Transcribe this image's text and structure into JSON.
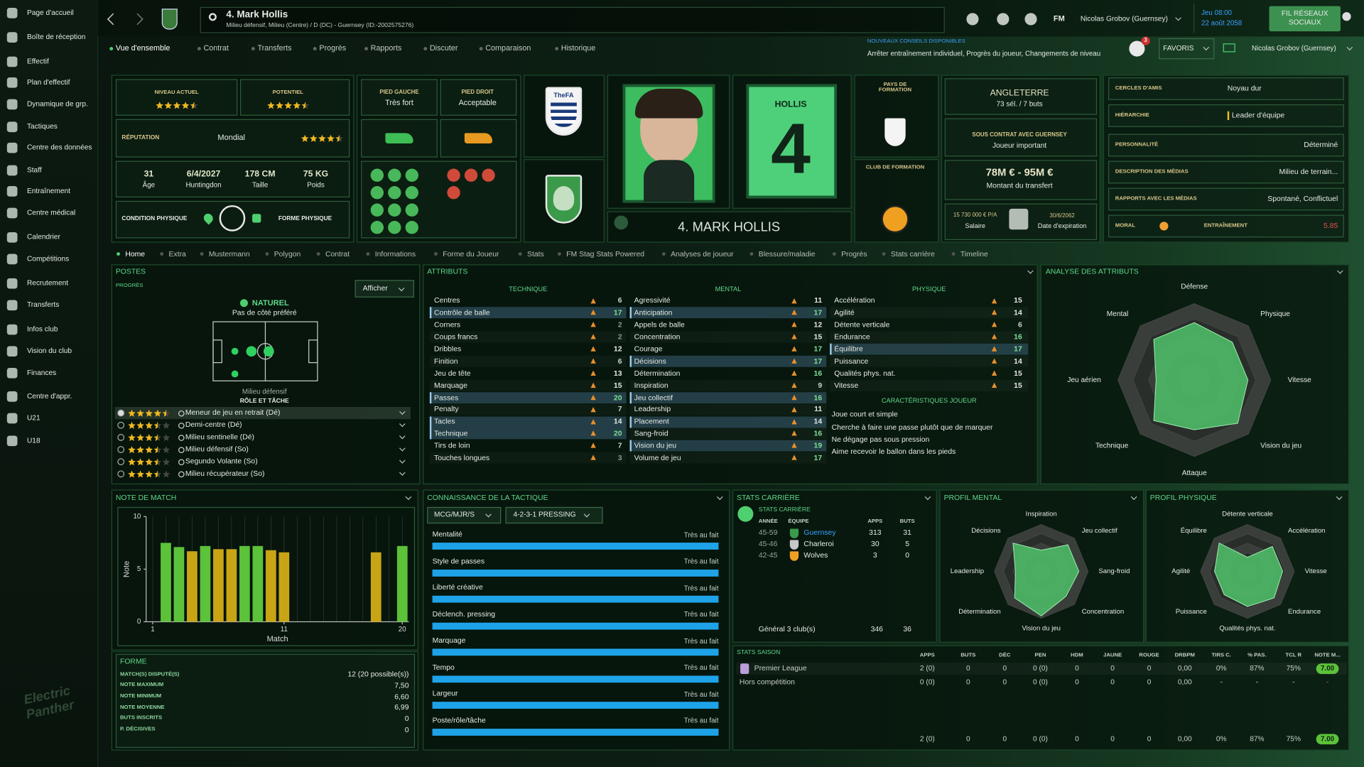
{
  "sidebar": [
    "Page d'accueil",
    "Boîte de réception",
    "Effectif",
    "Plan d'effectif",
    "Dynamique de grp.",
    "Tactiques",
    "Centre des données",
    "Staff",
    "Entraînement",
    "Centre médical",
    "Calendrier",
    "Compétitions",
    "Recrutement",
    "Transferts",
    "Infos club",
    "Vision du club",
    "Finances",
    "Centre d'appr.",
    "U21",
    "U18"
  ],
  "header": {
    "player": "4. Mark Hollis",
    "subtitle": "Milieu défensif, Milieu (Centre) / D (DC) - Guernsey (ID:-2002575276)",
    "fm": "FM",
    "manager": "Nicolas Grobov (Guernsey)",
    "day": "Jeu 08:00",
    "date": "22 août 2058",
    "social": "FIL RÉSEAUX SOCIAUX",
    "advice_title": "NOUVEAUX CONSEILS DISPONIBLES",
    "advice": "Arrêter entraînement individuel, Progrès du joueur, Changements de niveau",
    "notifications": "3",
    "favorites": "FAVORIS",
    "manager_short": "Nicolas Grobov (Guernsey)"
  },
  "nav": [
    "Vue d'ensemble",
    "Contrat",
    "Transferts",
    "Progrès",
    "Rapports",
    "Discuter",
    "Comparaison",
    "Historique"
  ],
  "profile": {
    "current_label": "NIVEAU ACTUEL",
    "current_stars": 4.5,
    "potential_label": "POTENTIEL",
    "potential_stars": 4.5,
    "reputation_label": "RÉPUTATION",
    "reputation": "Mondial",
    "reputation_stars": 4.5,
    "bio": [
      {
        "value": "31",
        "label": "Âge"
      },
      {
        "value": "6/4/2027",
        "label": "Huntingdon"
      },
      {
        "value": "178 CM",
        "label": "Taille"
      },
      {
        "value": "75 KG",
        "label": "Poids"
      }
    ],
    "condition_label": "CONDITION PHYSIQUE",
    "form_label": "FORME PHYSIQUE"
  },
  "feet": {
    "left_label": "PIED GAUCHE",
    "left": "Très fort",
    "right_label": "PIED DROIT",
    "right": "Acceptable"
  },
  "nation_badge": "TheFA",
  "name_bar": "4. MARK HOLLIS",
  "shirt": {
    "name": "HOLLIS",
    "number": "4"
  },
  "formation": {
    "country_label": "PAYS DE FORMATION",
    "club_label": "CLUB DE FORMATION"
  },
  "contract": {
    "nation": "ANGLETERRE",
    "caps": "73 sél. / 7 buts",
    "contract_label": "SOUS CONTRAT AVEC GUERNSEY",
    "status": "Joueur important",
    "value": "78M € - 95M €",
    "value_label": "Montant du transfert",
    "wage": "15 730 000 € P/A",
    "wage_label": "Salaire",
    "expiry": "30/6/2062",
    "expiry_label": "Date d'expiration"
  },
  "personality": {
    "rows": [
      {
        "label": "CERCLES D'AMIS",
        "value": "Noyau dur"
      },
      {
        "label": "HIÉRARCHIE",
        "value": "Leader d'équipe"
      },
      {
        "label": "PERSONNALITÉ",
        "value": "Déterminé"
      },
      {
        "label": "DESCRIPTION DES MÉDIAS",
        "value": "Milieu de terrain..."
      },
      {
        "label": "RAPPORTS AVEC LES MÉDIAS",
        "value": "Spontané, Conflictuel"
      }
    ],
    "morale_label": "MORAL",
    "training_label": "ENTRAÎNEMENT",
    "training": "5.85"
  },
  "tabs": [
    "Home",
    "Extra",
    "Mustermann",
    "Polygon",
    "Contrat",
    "Informations",
    "Forme du Joueur",
    "Stats",
    "FM Stag Stats Powered",
    "Analyses de joueur",
    "Blessure/maladie",
    "Progrès",
    "Stats carrière",
    "Timeline"
  ],
  "positions": {
    "title": "POSTES",
    "progress": "PROGRÈS",
    "show": "Afficher",
    "natural": "NATUREL",
    "side": "Pas de côté préféré",
    "position": "Milieu défensif",
    "role_title": "RÔLE ET TÂCHE",
    "roles": [
      {
        "stars": 4.5,
        "role": "Meneur de jeu en retrait (Dé)"
      },
      {
        "stars": 3.5,
        "role": "Demi-centre (Dé)"
      },
      {
        "stars": 3.5,
        "role": "Milieu sentinelle (Dé)"
      },
      {
        "stars": 3.5,
        "role": "Milieu défensif (So)"
      },
      {
        "stars": 3.5,
        "role": "Segundo Volante (So)"
      },
      {
        "stars": 3.5,
        "role": "Milieu récupérateur (So)"
      }
    ]
  },
  "attributes": {
    "title": "ATTRIBUTS",
    "groups": [
      {
        "name": "TECHNIQUE",
        "rows": [
          {
            "name": "Centres",
            "value": 6
          },
          {
            "name": "Contrôle de balle",
            "value": 17,
            "key": true
          },
          {
            "name": "Corners",
            "value": 2
          },
          {
            "name": "Coups francs",
            "value": 2
          },
          {
            "name": "Dribbles",
            "value": 12
          },
          {
            "name": "Finition",
            "value": 6
          },
          {
            "name": "Jeu de tête",
            "value": 13
          },
          {
            "name": "Marquage",
            "value": 15
          },
          {
            "name": "Passes",
            "value": 20,
            "key": true
          },
          {
            "name": "Penalty",
            "value": 7
          },
          {
            "name": "Tacles",
            "value": 14,
            "key": true
          },
          {
            "name": "Technique",
            "value": 20,
            "key": true
          },
          {
            "name": "Tirs de loin",
            "value": 7
          },
          {
            "name": "Touches longues",
            "value": 3
          }
        ]
      },
      {
        "name": "MENTAL",
        "rows": [
          {
            "name": "Agressivité",
            "value": 11
          },
          {
            "name": "Anticipation",
            "value": 17,
            "key": true
          },
          {
            "name": "Appels de balle",
            "value": 12
          },
          {
            "name": "Concentration",
            "value": 15
          },
          {
            "name": "Courage",
            "value": 17
          },
          {
            "name": "Décisions",
            "value": 17,
            "key": true
          },
          {
            "name": "Détermination",
            "value": 16
          },
          {
            "name": "Inspiration",
            "value": 9
          },
          {
            "name": "Jeu collectif",
            "value": 16,
            "key": true
          },
          {
            "name": "Leadership",
            "value": 11
          },
          {
            "name": "Placement",
            "value": 14,
            "key": true
          },
          {
            "name": "Sang-froid",
            "value": 16
          },
          {
            "name": "Vision du jeu",
            "value": 19,
            "key": true
          },
          {
            "name": "Volume de jeu",
            "value": 17
          }
        ]
      },
      {
        "name": "PHYSIQUE",
        "rows": [
          {
            "name": "Accélération",
            "value": 15
          },
          {
            "name": "Agilité",
            "value": 14
          },
          {
            "name": "Détente verticale",
            "value": 6
          },
          {
            "name": "Endurance",
            "value": 16
          },
          {
            "name": "Équilibre",
            "value": 17,
            "key": true
          },
          {
            "name": "Puissance",
            "value": 14
          },
          {
            "name": "Qualités phys. nat.",
            "value": 15
          },
          {
            "name": "Vitesse",
            "value": 15
          }
        ]
      }
    ],
    "traits_title": "CARACTÉRISTIQUES JOUEUR",
    "traits": [
      "Joue court et simple",
      "Cherche à faire une passe plutôt que de marquer",
      "Ne dégage pas sous pression",
      "Aime recevoir le ballon dans les pieds"
    ]
  },
  "form": {
    "title": "FORME",
    "rows": [
      {
        "label": "MATCH(S) DISPUTÉ(S)",
        "value": "12 (20 possible(s))"
      },
      {
        "label": "NOTE MAXIMUM",
        "value": "7,50"
      },
      {
        "label": "NOTE MINIMUM",
        "value": "6,60"
      },
      {
        "label": "NOTE MOYENNE",
        "value": "6,99"
      },
      {
        "label": "BUTS INSCRITS",
        "value": "0"
      },
      {
        "label": "P. DÉCISIVES",
        "value": "0"
      }
    ]
  },
  "tactics": {
    "title": "CONNAISSANCE DE LA TACTIQUE",
    "role": "MCG/MJR/S",
    "formation": "4-2-3-1 PRESSING",
    "rows": [
      {
        "name": "Mentalité",
        "level": "Très au fait"
      },
      {
        "name": "Style de passes",
        "level": "Très au fait"
      },
      {
        "name": "Liberté créative",
        "level": "Très au fait"
      },
      {
        "name": "Déclench. pressing",
        "level": "Très au fait"
      },
      {
        "name": "Marquage",
        "level": "Très au fait"
      },
      {
        "name": "Tempo",
        "level": "Très au fait"
      },
      {
        "name": "Largeur",
        "level": "Très au fait"
      },
      {
        "name": "Poste/rôle/tâche",
        "level": "Très au fait"
      }
    ]
  },
  "career": {
    "title": "STATS CARRIÈRE",
    "link": "STATS CARRIÈRE",
    "headers": [
      "ANNÉE",
      "ÉQUIPE",
      "APPS",
      "BUTS"
    ],
    "rows": [
      [
        "45-59",
        "Guernsey",
        "313",
        "31"
      ],
      [
        "45-46",
        "Charleroi",
        "30",
        "5"
      ],
      [
        "42-45",
        "Wolves",
        "3",
        "0"
      ]
    ],
    "total": [
      "Général 3 club(s)",
      "346",
      "36"
    ]
  },
  "season": {
    "title": "STATS SAISON",
    "headers": [
      "APPS",
      "BUTS",
      "DÉC",
      "PEN",
      "HDM",
      "JAUNE",
      "ROUGE",
      "DRBPM",
      "TIRS C.",
      "% PAS.",
      "TCL R",
      "NOTE M..."
    ],
    "rows": [
      {
        "name": "Premier League",
        "cells": [
          "2 (0)",
          "0",
          "0",
          "0 (0)",
          "0",
          "0",
          "0",
          "0,00",
          "0%",
          "87%",
          "75%",
          "7.00"
        ]
      },
      {
        "name": "Hors compétition",
        "cells": [
          "0 (0)",
          "0",
          "0",
          "0 (0)",
          "0",
          "0",
          "0",
          "0,00",
          "-",
          "-",
          "-",
          "-"
        ]
      }
    ],
    "total": [
      "2 (0)",
      "0",
      "0",
      "0 (0)",
      "0",
      "0",
      "0",
      "0,00",
      "0%",
      "87%",
      "75%",
      "7.00"
    ]
  },
  "watermark": "Electric Panther",
  "chart_data": [
    {
      "type": "bar",
      "title": "NOTE DE MATCH",
      "ylabel": "Note",
      "xlabel": "Match",
      "x": [
        1,
        2,
        3,
        4,
        5,
        6,
        7,
        8,
        9,
        10,
        11,
        12,
        13,
        14,
        15,
        16,
        17,
        18,
        19,
        20
      ],
      "values": [
        null,
        7.5,
        7.1,
        6.7,
        7.2,
        6.9,
        6.9,
        7.2,
        7.2,
        6.8,
        6.6,
        null,
        null,
        null,
        null,
        null,
        null,
        6.6,
        null,
        7.2
      ],
      "colors": [
        null,
        "#5cc23a",
        "#5cc23a",
        "#c9a516",
        "#5cc23a",
        "#c9a516",
        "#c9a516",
        "#5cc23a",
        "#5cc23a",
        "#c9a516",
        "#c9a516",
        null,
        null,
        null,
        null,
        null,
        null,
        "#c9a516",
        null,
        "#5cc23a"
      ],
      "xlim": [
        0.5,
        20.5
      ],
      "ylim": [
        0,
        10
      ],
      "xticks": [
        1,
        11,
        20
      ],
      "yticks": [
        0,
        5,
        10
      ],
      "grid": true
    },
    {
      "type": "radar",
      "title": "ANALYSE DES ATTRIBUTS",
      "axes": [
        "Défense",
        "Physique",
        "Vitesse",
        "Vision du jeu",
        "Attaque",
        "Technique",
        "Jeu aérien",
        "Mental"
      ],
      "values": [
        15,
        14,
        14,
        16,
        13,
        15,
        10,
        15
      ],
      "rlim": [
        0,
        20
      ],
      "color": "#4fc26a"
    },
    {
      "type": "radar",
      "title": "PROFIL MENTAL",
      "axes": [
        "Inspiration",
        "Jeu collectif",
        "Sang-froid",
        "Concentration",
        "Vision du jeu",
        "Détermination",
        "Leadership",
        "Décisions"
      ],
      "values": [
        9,
        16,
        16,
        15,
        19,
        16,
        11,
        17
      ],
      "rlim": [
        0,
        20
      ],
      "color": "#4fc26a"
    },
    {
      "type": "radar",
      "title": "PROFIL PHYSIQUE",
      "axes": [
        "Détente verticale",
        "Accélération",
        "Vitesse",
        "Endurance",
        "Qualités phys. nat.",
        "Puissance",
        "Agilité",
        "Équilibre"
      ],
      "values": [
        6,
        15,
        15,
        16,
        15,
        14,
        14,
        17
      ],
      "rlim": [
        0,
        20
      ],
      "color": "#4fc26a"
    }
  ]
}
